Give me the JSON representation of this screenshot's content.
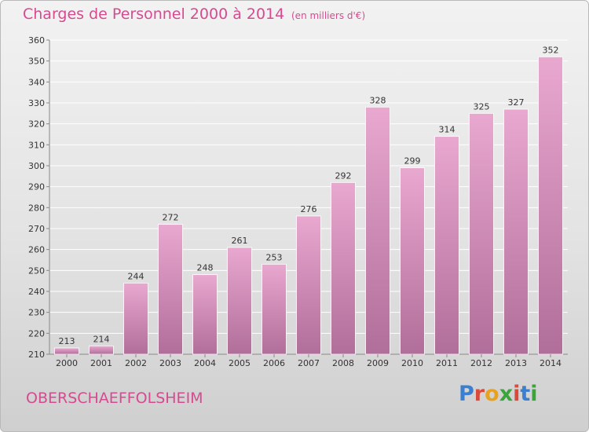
{
  "header": {
    "title": "Charges de Personnel 2000 à 2014",
    "subtitle": "(en milliers d'€)"
  },
  "footer": {
    "location": "OBERSCHAEFFOLSHEIM",
    "logo_text": "Proxiti",
    "logo_colors": [
      "#3a7fd0",
      "#d94a3a",
      "#e8a21e",
      "#3aa63a",
      "#d94a3a",
      "#3a7fd0",
      "#3aa63a"
    ]
  },
  "colors": {
    "bar_top": "#e9a8cf",
    "bar_bottom": "#b06e9a",
    "title": "#d64a8f"
  },
  "chart_data": {
    "type": "bar",
    "title": "Charges de Personnel 2000 à 2014",
    "xlabel": "",
    "ylabel": "",
    "categories": [
      "2000",
      "2001",
      "2002",
      "2003",
      "2004",
      "2005",
      "2006",
      "2007",
      "2008",
      "2009",
      "2010",
      "2011",
      "2012",
      "2013",
      "2014"
    ],
    "values": [
      213,
      214,
      244,
      272,
      248,
      261,
      253,
      276,
      292,
      328,
      299,
      314,
      325,
      327,
      352
    ],
    "ylim": [
      210,
      360
    ],
    "yticks": [
      210,
      220,
      230,
      240,
      250,
      260,
      270,
      280,
      290,
      300,
      310,
      320,
      330,
      340,
      350,
      360
    ],
    "grid": true,
    "legend": "none"
  }
}
